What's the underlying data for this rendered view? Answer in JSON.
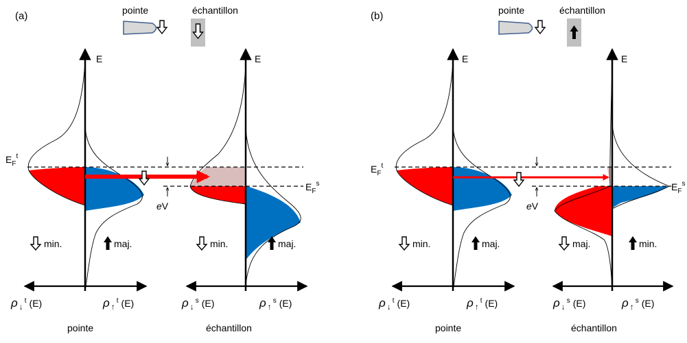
{
  "panels": [
    {
      "id": "a",
      "panel_label": "(a)",
      "tip_title": "pointe",
      "sample_title": "échantillon",
      "axis_label_tip": "E",
      "axis_label_sample": "E",
      "fermi_tip_main": "E",
      "fermi_tip_sub": "F",
      "fermi_tip_sup": "t",
      "fermi_sample_main": "E",
      "fermi_sample_sub": "F",
      "fermi_sample_sup": "s",
      "bias_label_italic": "e",
      "bias_label": "V",
      "tip_left_label": "min.",
      "tip_right_label": "maj.",
      "sample_left_label": "min.",
      "sample_right_label": "maj.",
      "rho_down_tip": {
        "main": "ρ",
        "sup": "t",
        "tail": "(E)"
      },
      "rho_up_tip": {
        "main": "ρ",
        "sup": "t",
        "tail": "(E)"
      },
      "rho_down_sample": {
        "main": "ρ",
        "sup": "s",
        "tail": "(E)"
      },
      "rho_up_sample": {
        "main": "ρ",
        "sup": "s",
        "tail": "(E)"
      },
      "bottom_tip": "pointe",
      "bottom_sample": "échantillon",
      "sample_spin": "down"
    },
    {
      "id": "b",
      "panel_label": "(b)",
      "tip_title": "pointe",
      "sample_title": "échantillon",
      "axis_label_tip": "E",
      "axis_label_sample": "E",
      "fermi_tip_main": "E",
      "fermi_tip_sub": "F",
      "fermi_tip_sup": "t",
      "fermi_sample_main": "E",
      "fermi_sample_sub": "F",
      "fermi_sample_sup": "s",
      "bias_label_italic": "e",
      "bias_label": "V",
      "tip_left_label": "min.",
      "tip_right_label": "maj.",
      "sample_left_label": "maj.",
      "sample_right_label": "min.",
      "rho_down_tip": {
        "main": "ρ",
        "sup": "t",
        "tail": "(E)"
      },
      "rho_up_tip": {
        "main": "ρ",
        "sup": "t",
        "tail": "(E)"
      },
      "rho_down_sample": {
        "main": "ρ",
        "sup": "s",
        "tail": "(E)"
      },
      "rho_up_sample": {
        "main": "ρ",
        "sup": "s",
        "tail": "(E)"
      },
      "bottom_tip": "pointe",
      "bottom_sample": "échantillon",
      "sample_spin": "up"
    }
  ],
  "colors": {
    "minority_fill": "#ff0000",
    "majority_fill": "#0070c0",
    "empty_fill": "#d9bcbc",
    "tunnel_arrow": "#ff0000",
    "tip_fill": "#d8d8d8",
    "tip_stroke": "#3f5f8f",
    "sample_box": "#c0c0c0"
  },
  "icons": {
    "spin_down": "hollow-down-arrow-icon",
    "spin_up": "solid-up-arrow-icon"
  }
}
